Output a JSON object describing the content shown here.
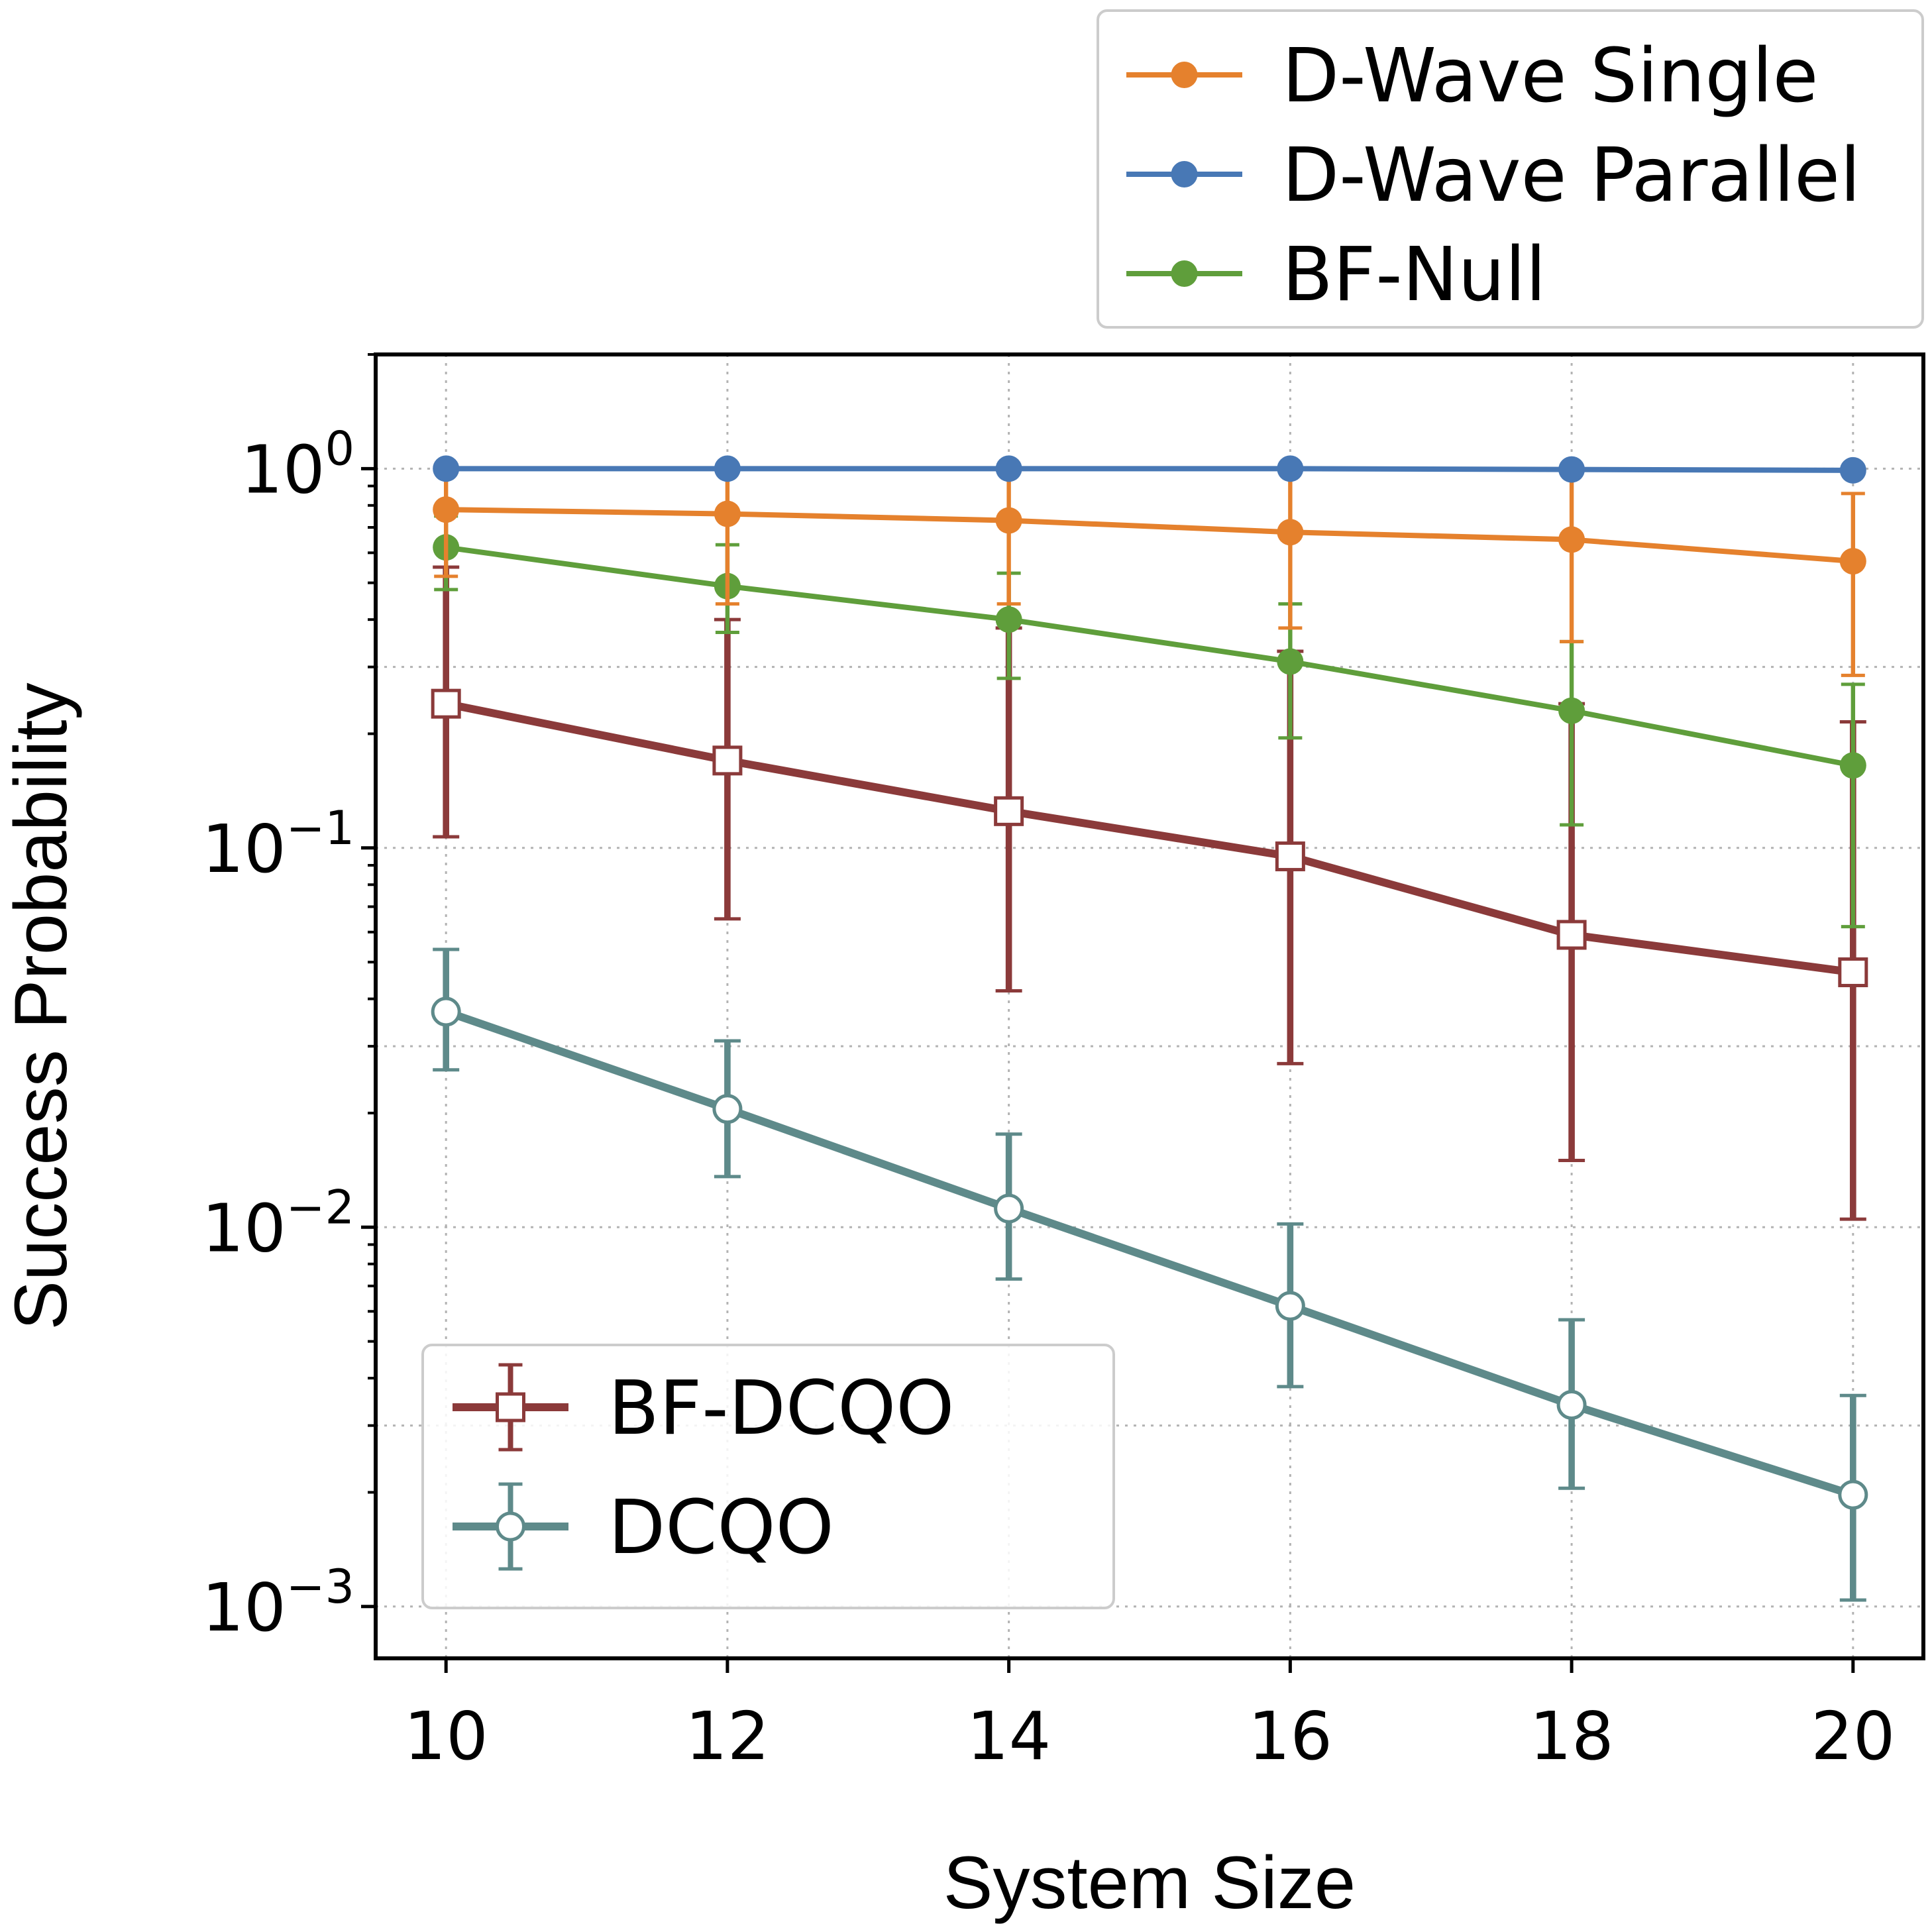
{
  "chart_data": {
    "type": "line",
    "title": "",
    "xlabel": "System Size",
    "ylabel": "Success Probability",
    "yscale": "log",
    "xlim": [
      9.5,
      20.5
    ],
    "ylim": [
      0.00073,
      2.0
    ],
    "x": [
      10,
      12,
      14,
      16,
      18,
      20
    ],
    "x_tick_labels": [
      "10",
      "12",
      "14",
      "16",
      "18",
      "20"
    ],
    "y_ticks": [
      {
        "value": 1,
        "base": "10",
        "exp": "0"
      },
      {
        "value": 0.1,
        "base": "10",
        "exp": "−1"
      },
      {
        "value": 0.01,
        "base": "10",
        "exp": "−2"
      },
      {
        "value": 0.001,
        "base": "10",
        "exp": "−3"
      }
    ],
    "grid": true,
    "series": [
      {
        "name": "D-Wave Single",
        "color": "#e5812d",
        "marker": "filled-circle",
        "values": [
          0.78,
          0.76,
          0.73,
          0.68,
          0.65,
          0.57
        ],
        "err_low": [
          0.52,
          0.44,
          0.44,
          0.38,
          0.35,
          0.285
        ],
        "err_high": [
          1.0,
          1.0,
          1.0,
          1.0,
          1.0,
          0.86
        ]
      },
      {
        "name": "D-Wave Parallel",
        "color": "#4878b5",
        "marker": "filled-circle",
        "values": [
          1.0,
          1.0,
          1.0,
          1.0,
          0.995,
          0.99
        ],
        "err_low": [
          1.0,
          1.0,
          1.0,
          1.0,
          0.995,
          0.99
        ],
        "err_high": [
          1.0,
          1.0,
          1.0,
          1.0,
          0.995,
          0.99
        ]
      },
      {
        "name": "BF-Null",
        "color": "#5f9e3b",
        "marker": "filled-circle",
        "values": [
          0.62,
          0.49,
          0.4,
          0.31,
          0.23,
          0.165
        ],
        "err_low": [
          0.48,
          0.37,
          0.28,
          0.195,
          0.115,
          0.062
        ],
        "err_high": [
          0.75,
          0.63,
          0.53,
          0.44,
          0.35,
          0.27
        ]
      },
      {
        "name": "BF-DCQO",
        "color": "#8b3a3a",
        "marker": "open-square",
        "values": [
          0.24,
          0.17,
          0.125,
          0.095,
          0.059,
          0.047
        ],
        "err_low": [
          0.107,
          0.065,
          0.042,
          0.027,
          0.015,
          0.0105
        ],
        "err_high": [
          0.55,
          0.4,
          0.38,
          0.33,
          0.24,
          0.215
        ]
      },
      {
        "name": "DCQO",
        "color": "#5e8a8a",
        "marker": "open-circle",
        "values": [
          0.037,
          0.0205,
          0.0112,
          0.0062,
          0.0034,
          0.00197
        ],
        "err_low": [
          0.026,
          0.0136,
          0.0073,
          0.0038,
          0.00205,
          0.00104
        ],
        "err_high": [
          0.054,
          0.031,
          0.0176,
          0.0102,
          0.0057,
          0.0036
        ]
      }
    ],
    "legends": [
      {
        "position": "top-right, above plot",
        "entries": [
          "D-Wave Single",
          "D-Wave Parallel",
          "BF-Null"
        ]
      },
      {
        "position": "lower-left, inside plot",
        "entries": [
          "BF-DCQO",
          "DCQO"
        ]
      }
    ]
  }
}
